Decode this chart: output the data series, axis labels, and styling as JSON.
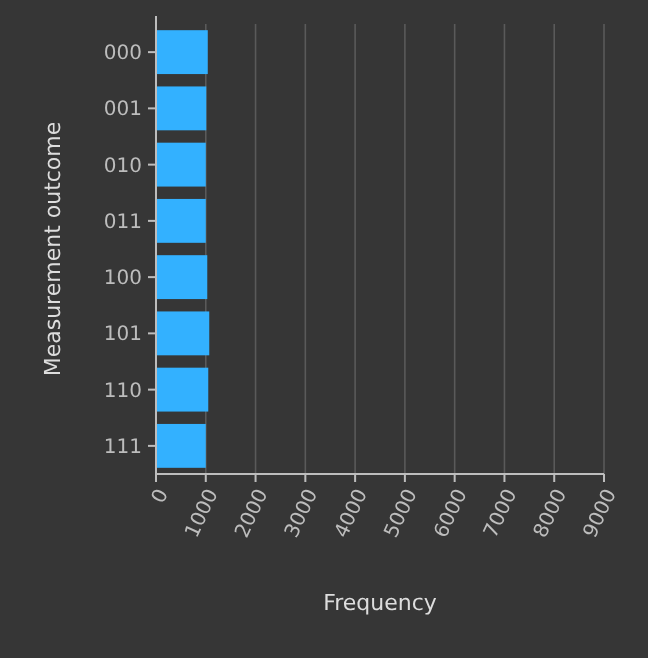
{
  "chart_data": {
    "type": "bar",
    "orientation": "horizontal",
    "xlabel": "Frequency",
    "ylabel": "Measurement outcome",
    "categories": [
      "000",
      "001",
      "010",
      "011",
      "100",
      "101",
      "110",
      "111"
    ],
    "values": [
      1040,
      1010,
      1000,
      1000,
      1030,
      1070,
      1050,
      1000
    ],
    "color": "#33b1ff",
    "xlim": [
      0,
      9000
    ],
    "xticks": [
      0,
      1000,
      2000,
      3000,
      4000,
      5000,
      6000,
      7000,
      8000,
      9000
    ],
    "grid": "x"
  }
}
